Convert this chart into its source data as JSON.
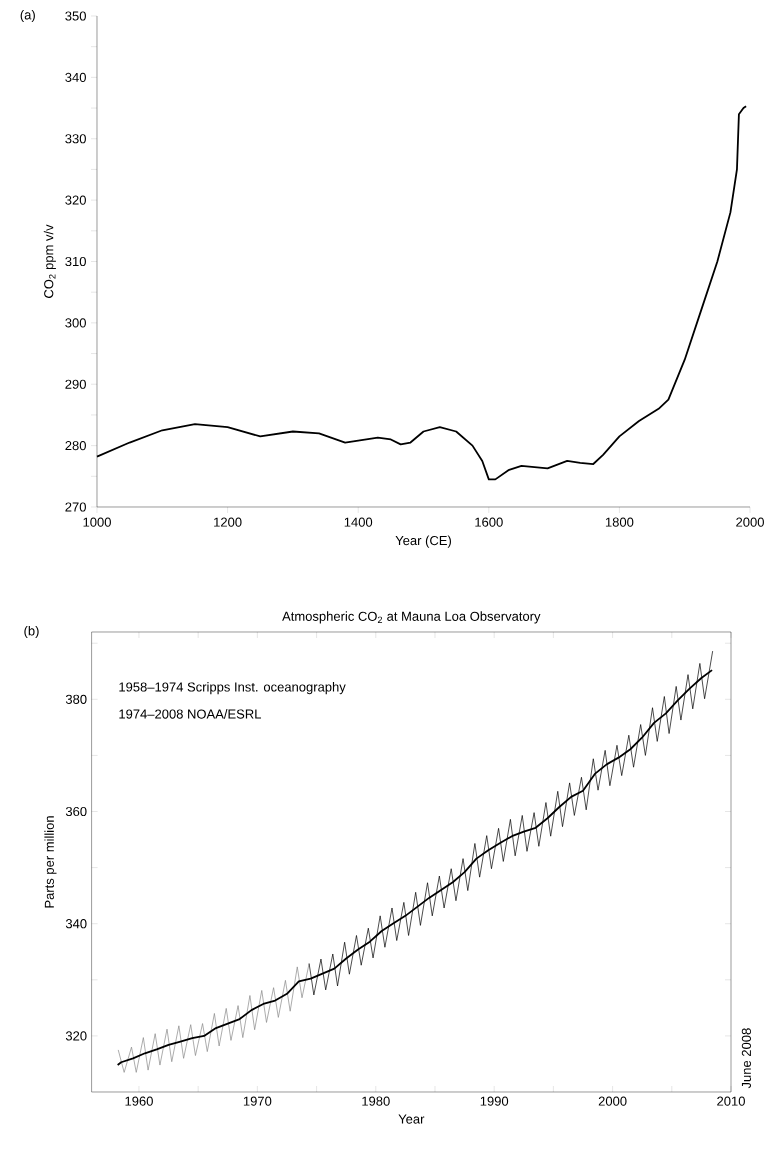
{
  "chart_data": [
    {
      "type": "line",
      "ylabel": "CO$_{2}$ ppm v/v",
      "xlabel": "Year (CE)",
      "annotations": [
        "(a)"
      ],
      "x": [
        1000,
        1050,
        1100,
        1150,
        1200,
        1250,
        1300,
        1340,
        1380,
        1430,
        1450,
        1465,
        1480,
        1500,
        1525,
        1550,
        1575,
        1590,
        1600,
        1610,
        1630,
        1650,
        1690,
        1720,
        1740,
        1760,
        1775,
        1800,
        1830,
        1860,
        1875,
        1900,
        1925,
        1950,
        1970,
        1980,
        1983,
        1990,
        1994
      ],
      "values": [
        278.2,
        280.5,
        282.5,
        283.5,
        283,
        281.5,
        282.3,
        282,
        280.5,
        281.3,
        281,
        280.2,
        280.5,
        282.3,
        283,
        282.3,
        280,
        277.5,
        274.5,
        274.5,
        276,
        276.7,
        276.3,
        277.5,
        277.2,
        277,
        278.5,
        281.5,
        284,
        286,
        287.5,
        294,
        302,
        310,
        318,
        325,
        334,
        335,
        335.3
      ],
      "color": "#000000",
      "xlim": [
        1000,
        2000
      ],
      "ylim": [
        270,
        350
      ],
      "xticks": [
        1000,
        1200,
        1400,
        1600,
        1800,
        2000
      ],
      "yticks": [
        270,
        {
          "value": 275,
          "label": null
        },
        280,
        {
          "value": 285,
          "label": null
        },
        290,
        {
          "value": 295,
          "label": null
        },
        300,
        {
          "value": 305,
          "label": null
        },
        310,
        {
          "value": 315,
          "label": null
        },
        320,
        {
          "value": 325,
          "label": null
        },
        330,
        {
          "value": 335,
          "label": null
        },
        340,
        {
          "value": 345,
          "label": null
        },
        350
      ]
    },
    {
      "type": "line",
      "title": "Atmospheric CO$_{2}$ at Mauna Loa Observatory",
      "xlabel": "Year",
      "ylabel": "Parts per million",
      "annotations": [
        "(b)",
        "1958–1974 Scripps Inst. oceanography",
        "1974–2008 NOAA/ESRL",
        "June 2008"
      ],
      "xlim": [
        1956,
        2010
      ],
      "ylim": [
        310,
        392
      ],
      "xticks": [
        1960,
        {
          "value": 1965,
          "label": null
        },
        1970,
        {
          "value": 1975,
          "label": null
        },
        1980,
        {
          "value": 1985,
          "label": null
        },
        1990,
        {
          "value": 1995,
          "label": null
        },
        2000,
        {
          "value": 2005,
          "label": null
        },
        2010
      ],
      "yticks": [
        320,
        {
          "value": 330,
          "label": null
        },
        340,
        {
          "value": 350,
          "label": null
        },
        360,
        {
          "value": 370,
          "label": null
        },
        380,
        {
          "value": 390,
          "label": null
        }
      ],
      "series": [
        {
          "color": "#888888",
          "x": [
            1958.25,
            1958.75,
            1959.37,
            1959.77,
            1960.37,
            1960.77,
            1961.37,
            1961.77,
            1962.37,
            1962.77,
            1963.37,
            1963.77,
            1964.37,
            1964.77,
            1965.37,
            1965.77,
            1966.37,
            1966.77,
            1967.37,
            1967.77,
            1968.37,
            1968.77,
            1969.37,
            1969.77,
            1970.37,
            1970.77,
            1971.37,
            1971.77,
            1972.37,
            1972.77,
            1973.37,
            1973.77,
            1974.37
          ],
          "values": [
            317.5,
            313.5,
            318.0,
            313.5,
            319.7,
            313.9,
            320.4,
            314.8,
            321.2,
            315.4,
            321.8,
            316.0,
            322.0,
            316.5,
            322.2,
            317.2,
            324.0,
            318.2,
            324.9,
            319.2,
            325.4,
            319.7,
            327.2,
            321.1,
            328.1,
            322.4,
            328.6,
            323.3,
            329.9,
            324.4,
            332.3,
            326.8,
            332.9
          ]
        },
        {
          "color": "#000000",
          "x": [
            1974.37,
            1974.77,
            1975.37,
            1975.77,
            1976.37,
            1976.77,
            1977.37,
            1977.77,
            1978.37,
            1978.77,
            1979.37,
            1979.77,
            1980.37,
            1980.77,
            1981.37,
            1981.77,
            1982.37,
            1982.77,
            1983.37,
            1983.77,
            1984.37,
            1984.77,
            1985.37,
            1985.77,
            1986.37,
            1986.77,
            1987.37,
            1987.77,
            1988.37,
            1988.77,
            1989.37,
            1989.77,
            1990.37,
            1990.77,
            1991.37,
            1991.77,
            1992.37,
            1992.77,
            1993.37,
            1993.77,
            1994.37,
            1994.77,
            1995.37,
            1995.77,
            1996.37,
            1996.77,
            1997.37,
            1997.77,
            1998.37,
            1998.77,
            1999.37,
            1999.77,
            2000.37,
            2000.77,
            2001.37,
            2001.77,
            2002.37,
            2002.77,
            2003.37,
            2003.77,
            2004.37,
            2004.77,
            2005.37,
            2005.77,
            2006.37,
            2006.77,
            2007.37,
            2007.77,
            2008.45
          ],
          "values": [
            332.9,
            327.3,
            333.7,
            328.2,
            334.6,
            328.9,
            336.7,
            331.0,
            337.9,
            332.6,
            339.2,
            333.9,
            341.4,
            335.8,
            342.8,
            337.0,
            343.8,
            337.9,
            345.6,
            339.7,
            347.3,
            341.4,
            348.5,
            342.8,
            349.8,
            344.1,
            351.6,
            345.9,
            354.3,
            348.3,
            355.7,
            349.8,
            357.0,
            351.1,
            358.6,
            352.1,
            359.3,
            352.9,
            359.8,
            353.8,
            361.6,
            355.6,
            363.6,
            357.3,
            365.1,
            359.3,
            366.1,
            360.3,
            369.4,
            363.8,
            370.9,
            364.6,
            371.8,
            366.4,
            373.6,
            367.9,
            375.5,
            370.0,
            378.5,
            372.5,
            380.5,
            373.9,
            382.3,
            376.3,
            384.4,
            378.3,
            386.4,
            380.1,
            388.6
          ]
        },
        {
          "color": "#000000",
          "x": [
            1958.2,
            1958.5,
            1959.5,
            1960.5,
            1961.5,
            1962.5,
            1963.5,
            1964.5,
            1965.5,
            1966.5,
            1967.5,
            1968.5,
            1969.5,
            1970.5,
            1971.5,
            1972.5,
            1973.5,
            1974.5,
            1975.5,
            1976.5,
            1977.5,
            1978.5,
            1979.5,
            1980.5,
            1981.5,
            1982.5,
            1983.5,
            1984.5,
            1985.5,
            1986.5,
            1987.5,
            1988.5,
            1989.5,
            1990.5,
            1991.5,
            1992.5,
            1993.5,
            1994.5,
            1995.5,
            1996.5,
            1997.5,
            1998.5,
            1999.5,
            2000.5,
            2001.5,
            2002.5,
            2003.5,
            2004.5,
            2005.5,
            2006.5,
            2007.5,
            2008.4
          ],
          "values": [
            314.8,
            315.3,
            316.0,
            316.9,
            317.6,
            318.4,
            319.0,
            319.6,
            320.0,
            321.4,
            322.2,
            323.0,
            324.6,
            325.7,
            326.3,
            327.5,
            329.7,
            330.2,
            331.1,
            332.0,
            333.8,
            335.4,
            336.8,
            338.7,
            340.1,
            341.4,
            343.0,
            344.6,
            346.0,
            347.4,
            349.2,
            351.6,
            353.1,
            354.4,
            355.6,
            356.4,
            357.1,
            358.8,
            360.8,
            362.6,
            363.7,
            366.7,
            368.4,
            369.6,
            371.1,
            373.2,
            375.8,
            377.5,
            379.8,
            381.9,
            383.8,
            385.2
          ]
        }
      ]
    }
  ]
}
